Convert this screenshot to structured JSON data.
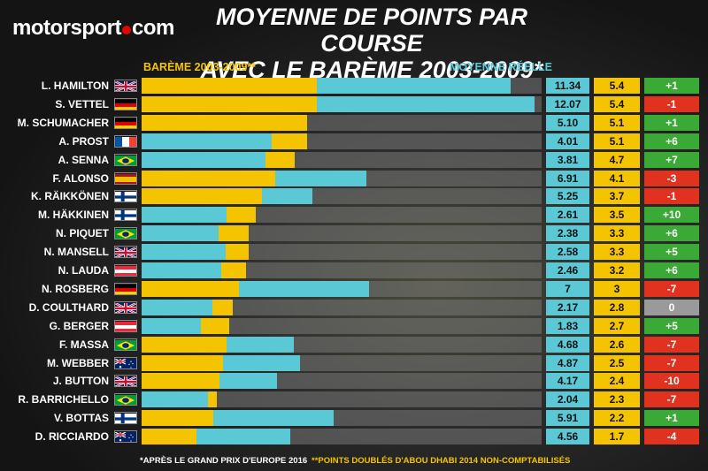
{
  "logo": {
    "text_a": "motorsport",
    "text_b": "com"
  },
  "title_line1": "MOYENNE DE POINTS PAR COURSE",
  "title_line2": "AVEC LE BARÈME 2003-2009*",
  "colors": {
    "bareme": "#f5c400",
    "reelle": "#5bc8d6",
    "positive": "#3aa935",
    "negative": "#e0321e",
    "zero": "#9a9a9a"
  },
  "chart_data": {
    "type": "bar",
    "title": "MOYENNE DE POINTS PAR COURSE AVEC LE BARÈME 2003-2009*",
    "categories": [
      "L. HAMILTON",
      "S. VETTEL",
      "M. SCHUMACHER",
      "A. PROST",
      "A. SENNA",
      "F. ALONSO",
      "K. RÄIKKÖNEN",
      "M. HÄKKINEN",
      "N. PIQUET",
      "N. MANSELL",
      "N. LAUDA",
      "N. ROSBERG",
      "D. COULTHARD",
      "G. BERGER",
      "F. MASSA",
      "M. WEBBER",
      "J. BUTTON",
      "R. BARRICHELLO",
      "V. BOTTAS",
      "D. RICCIARDO"
    ],
    "flags": [
      "gb",
      "de",
      "de",
      "fr",
      "br",
      "es",
      "fi",
      "fi",
      "br",
      "gb",
      "at",
      "de",
      "gb",
      "at",
      "br",
      "au",
      "gb",
      "br",
      "fi",
      "au"
    ],
    "series": [
      {
        "name": "BARÈME 2003-2009**",
        "values": [
          5.4,
          5.4,
          5.1,
          5.1,
          4.7,
          4.1,
          3.7,
          3.5,
          3.3,
          3.3,
          3.2,
          3,
          2.8,
          2.7,
          2.6,
          2.5,
          2.4,
          2.3,
          2.2,
          1.7
        ],
        "labels": [
          "5.4",
          "5.4",
          "5.1",
          "5.1",
          "4.7",
          "4.1",
          "3.7",
          "3.5",
          "3.3",
          "3.3",
          "3.2",
          "3",
          "2.8",
          "2.7",
          "2.6",
          "2.5",
          "2.4",
          "2.3",
          "2.2",
          "1.7"
        ]
      },
      {
        "name": "MOYENNE RÉELLE",
        "values": [
          11.34,
          12.07,
          5.1,
          4.01,
          3.81,
          6.91,
          5.25,
          2.61,
          2.38,
          2.58,
          2.46,
          7,
          2.17,
          1.83,
          4.68,
          4.87,
          4.17,
          2.04,
          5.91,
          4.56
        ],
        "labels": [
          "11.34",
          "12.07",
          "5.10",
          "4.01",
          "3.81",
          "6.91",
          "5.25",
          "2.61",
          "2.38",
          "2.58",
          "2.46",
          "7",
          "2.17",
          "1.83",
          "4.68",
          "4.87",
          "4.17",
          "2.04",
          "5.91",
          "4.56"
        ]
      }
    ],
    "rank_change": [
      "+1",
      "-1",
      "+1",
      "+6",
      "+7",
      "-3",
      "-1",
      "+10",
      "+6",
      "+5",
      "+6",
      "-7",
      "0",
      "+5",
      "-7",
      "-7",
      "-10",
      "-7",
      "+1",
      "-4"
    ],
    "xlim": [
      0,
      12.3
    ]
  },
  "footnote_a": "*APRÈS LE GRAND PRIX D'EUROPE 2016",
  "footnote_b": "**POINTS DOUBLÉS D'ABOU DHABI 2014 NON-COMPTABILISÉS"
}
